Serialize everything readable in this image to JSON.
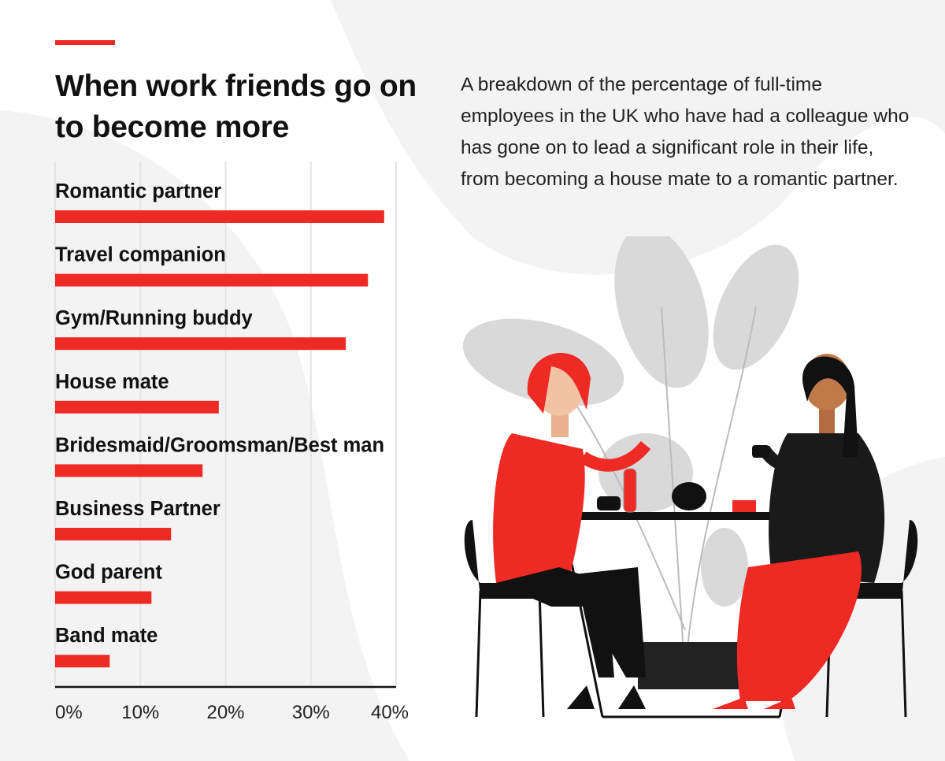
{
  "title": "When work friends go on to become more",
  "subtitle": "A breakdown of the percentage of full-time employees in the UK who have had a colleague who has gone on to lead a significant role in their life, from becoming a house mate to a romantic partner.",
  "colors": {
    "bar": "#ee2a24",
    "accent": "#ee2a24",
    "background_blob": "#f2f2f2",
    "text": "#111111"
  },
  "chart_data": {
    "type": "bar",
    "orientation": "horizontal",
    "title": "When work friends go on to become more",
    "categories": [
      "Romantic partner",
      "Travel companion",
      "Gym/Running buddy",
      "House mate",
      "Bridesmaid/Groomsman/Best man",
      "Business Partner",
      "God parent",
      "Band mate"
    ],
    "values": [
      38.6,
      36.7,
      34.1,
      19.2,
      17.3,
      13.6,
      11.3,
      6.4
    ],
    "unit": "%",
    "xlim": [
      0,
      40
    ],
    "xticks": [
      "0%",
      "10%",
      "20%",
      "30%",
      "40%"
    ],
    "grid": true
  }
}
